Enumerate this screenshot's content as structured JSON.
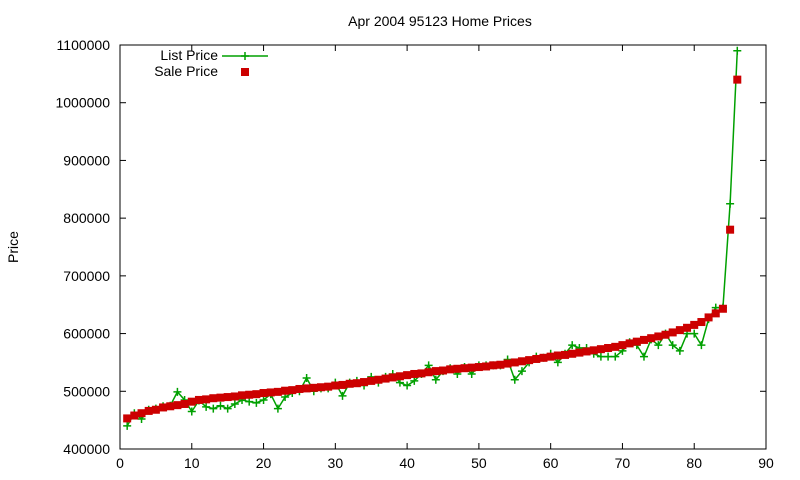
{
  "chart_data": {
    "type": "line",
    "title": "Apr 2004 95123 Home Prices",
    "xlabel": "",
    "ylabel": "Price",
    "xlim": [
      0,
      90
    ],
    "ylim": [
      400000,
      1100000
    ],
    "x_ticks": [
      "0",
      "10",
      "20",
      "30",
      "40",
      "50",
      "60",
      "70",
      "80",
      "90"
    ],
    "y_ticks": [
      "400000",
      "500000",
      "600000",
      "700000",
      "800000",
      "900000",
      "1000000",
      "1100000"
    ],
    "grid": false,
    "legend": "top-left",
    "x": [
      1,
      2,
      3,
      4,
      5,
      6,
      7,
      8,
      9,
      10,
      11,
      12,
      13,
      14,
      15,
      16,
      17,
      18,
      19,
      20,
      21,
      22,
      23,
      24,
      25,
      26,
      27,
      28,
      29,
      30,
      31,
      32,
      33,
      34,
      35,
      36,
      37,
      38,
      39,
      40,
      41,
      42,
      43,
      44,
      45,
      46,
      47,
      48,
      49,
      50,
      51,
      52,
      53,
      54,
      55,
      56,
      57,
      58,
      59,
      60,
      61,
      62,
      63,
      64,
      65,
      66,
      67,
      68,
      69,
      70,
      71,
      72,
      73,
      74,
      75,
      76,
      77,
      78,
      79,
      80,
      81,
      82,
      83,
      84,
      85,
      86
    ],
    "series": [
      {
        "name": "List Price",
        "style": "line+plus",
        "color": "#00a000",
        "values": [
          440000,
          462000,
          452000,
          468000,
          470000,
          474000,
          475000,
          499000,
          485000,
          465000,
          484000,
          473000,
          470000,
          475000,
          470000,
          478000,
          485000,
          482000,
          480000,
          485000,
          495000,
          470000,
          490000,
          497000,
          500000,
          523000,
          500000,
          505000,
          505000,
          515000,
          492000,
          515000,
          518000,
          510000,
          525000,
          515000,
          525000,
          530000,
          515000,
          510000,
          518000,
          530000,
          545000,
          520000,
          535000,
          540000,
          530000,
          542000,
          530000,
          545000,
          545000,
          545000,
          545000,
          555000,
          520000,
          535000,
          550000,
          560000,
          558000,
          565000,
          550000,
          565000,
          580000,
          575000,
          575000,
          565000,
          560000,
          560000,
          560000,
          570000,
          585000,
          580000,
          560000,
          590000,
          580000,
          600000,
          580000,
          570000,
          600000,
          600000,
          580000,
          625000,
          645000,
          645000,
          825000,
          1090000
        ]
      },
      {
        "name": "Sale Price",
        "style": "square",
        "color": "#cc0000",
        "values": [
          453000,
          458000,
          462000,
          466000,
          468000,
          472000,
          474000,
          476000,
          478000,
          482000,
          485000,
          486000,
          488000,
          489000,
          490000,
          491000,
          493000,
          494000,
          495000,
          497000,
          498000,
          499000,
          501000,
          502000,
          504000,
          505000,
          506000,
          507000,
          508000,
          510000,
          511000,
          513000,
          514000,
          516000,
          518000,
          520000,
          522000,
          524000,
          526000,
          528000,
          530000,
          531000,
          533000,
          535000,
          536000,
          538000,
          539000,
          540000,
          541000,
          542000,
          543000,
          545000,
          546000,
          548000,
          550000,
          552000,
          554000,
          556000,
          558000,
          560000,
          562000,
          563000,
          565000,
          567000,
          569000,
          571000,
          573000,
          575000,
          577000,
          580000,
          583000,
          586000,
          589000,
          592000,
          595000,
          598000,
          602000,
          606000,
          610000,
          615000,
          620000,
          628000,
          635000,
          643000,
          780000,
          1040000
        ]
      }
    ]
  }
}
